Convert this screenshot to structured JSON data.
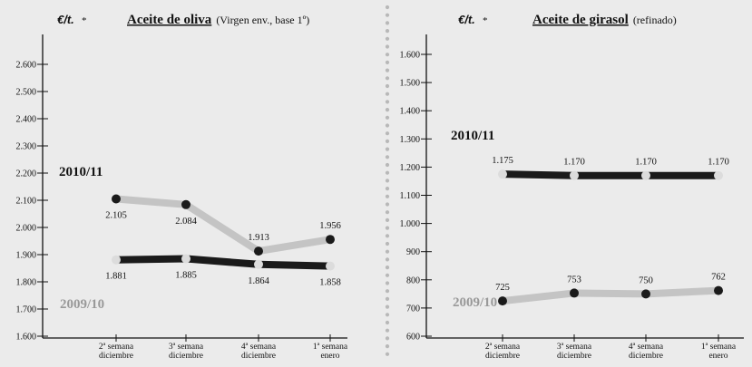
{
  "chart_data": [
    {
      "type": "line",
      "unit_label": "€/t.",
      "unit_marker": "*",
      "title": "Aceite de oliva",
      "subtitle": "(Virgen env., base 1º)",
      "categories": [
        [
          "2ª semana",
          "diciembre"
        ],
        [
          "3ª semana",
          "diciembre"
        ],
        [
          "4ª semana",
          "diciembre"
        ],
        [
          "1ª semana",
          "enero"
        ]
      ],
      "y_ticks": [
        "1.600",
        "1.700",
        "1.800",
        "1.900",
        "2.000",
        "2.100",
        "2.200",
        "2.300",
        "2.400",
        "2.500",
        "2.600"
      ],
      "ylim": [
        1600,
        2600
      ],
      "series": [
        {
          "name": "2010/11",
          "values": [
            2105,
            2084,
            1913,
            1956
          ],
          "labels": [
            "2.105",
            "2.084",
            "1.913",
            "1.956"
          ],
          "line_color": "#c4c4c4",
          "dot_color": "#1a1a1a",
          "label_position": [
            "below",
            "below",
            "above",
            "above"
          ]
        },
        {
          "name": "2009/10",
          "values": [
            1881,
            1885,
            1864,
            1858
          ],
          "labels": [
            "1.881",
            "1.885",
            "1.864",
            "1.858"
          ],
          "line_color": "#1a1a1a",
          "dot_color": "#dcdcdc",
          "label_position": [
            "below",
            "below",
            "below",
            "below"
          ]
        }
      ]
    },
    {
      "type": "line",
      "unit_label": "€/t.",
      "unit_marker": "*",
      "title": "Aceite de girasol",
      "subtitle": "(refinado)",
      "categories": [
        [
          "2ª semana",
          "diciembre"
        ],
        [
          "3ª semana",
          "diciembre"
        ],
        [
          "4ª semana",
          "diciembre"
        ],
        [
          "1ª semana",
          "enero"
        ]
      ],
      "y_ticks": [
        "600",
        "700",
        "800",
        "900",
        "1.000",
        "1.100",
        "1.200",
        "1.300",
        "1.400",
        "1.500",
        "1.600"
      ],
      "ylim": [
        600,
        1600
      ],
      "series": [
        {
          "name": "2010/11",
          "values": [
            1175,
            1170,
            1170,
            1170
          ],
          "labels": [
            "1.175",
            "1.170",
            "1.170",
            "1.170"
          ],
          "line_color": "#1a1a1a",
          "dot_color": "#dcdcdc",
          "label_position": [
            "above",
            "above",
            "above",
            "above"
          ]
        },
        {
          "name": "2009/10",
          "values": [
            725,
            753,
            750,
            762
          ],
          "labels": [
            "725",
            "753",
            "750",
            "762"
          ],
          "line_color": "#c4c4c4",
          "dot_color": "#1a1a1a",
          "label_position": [
            "above",
            "above",
            "above",
            "above"
          ]
        }
      ]
    }
  ]
}
